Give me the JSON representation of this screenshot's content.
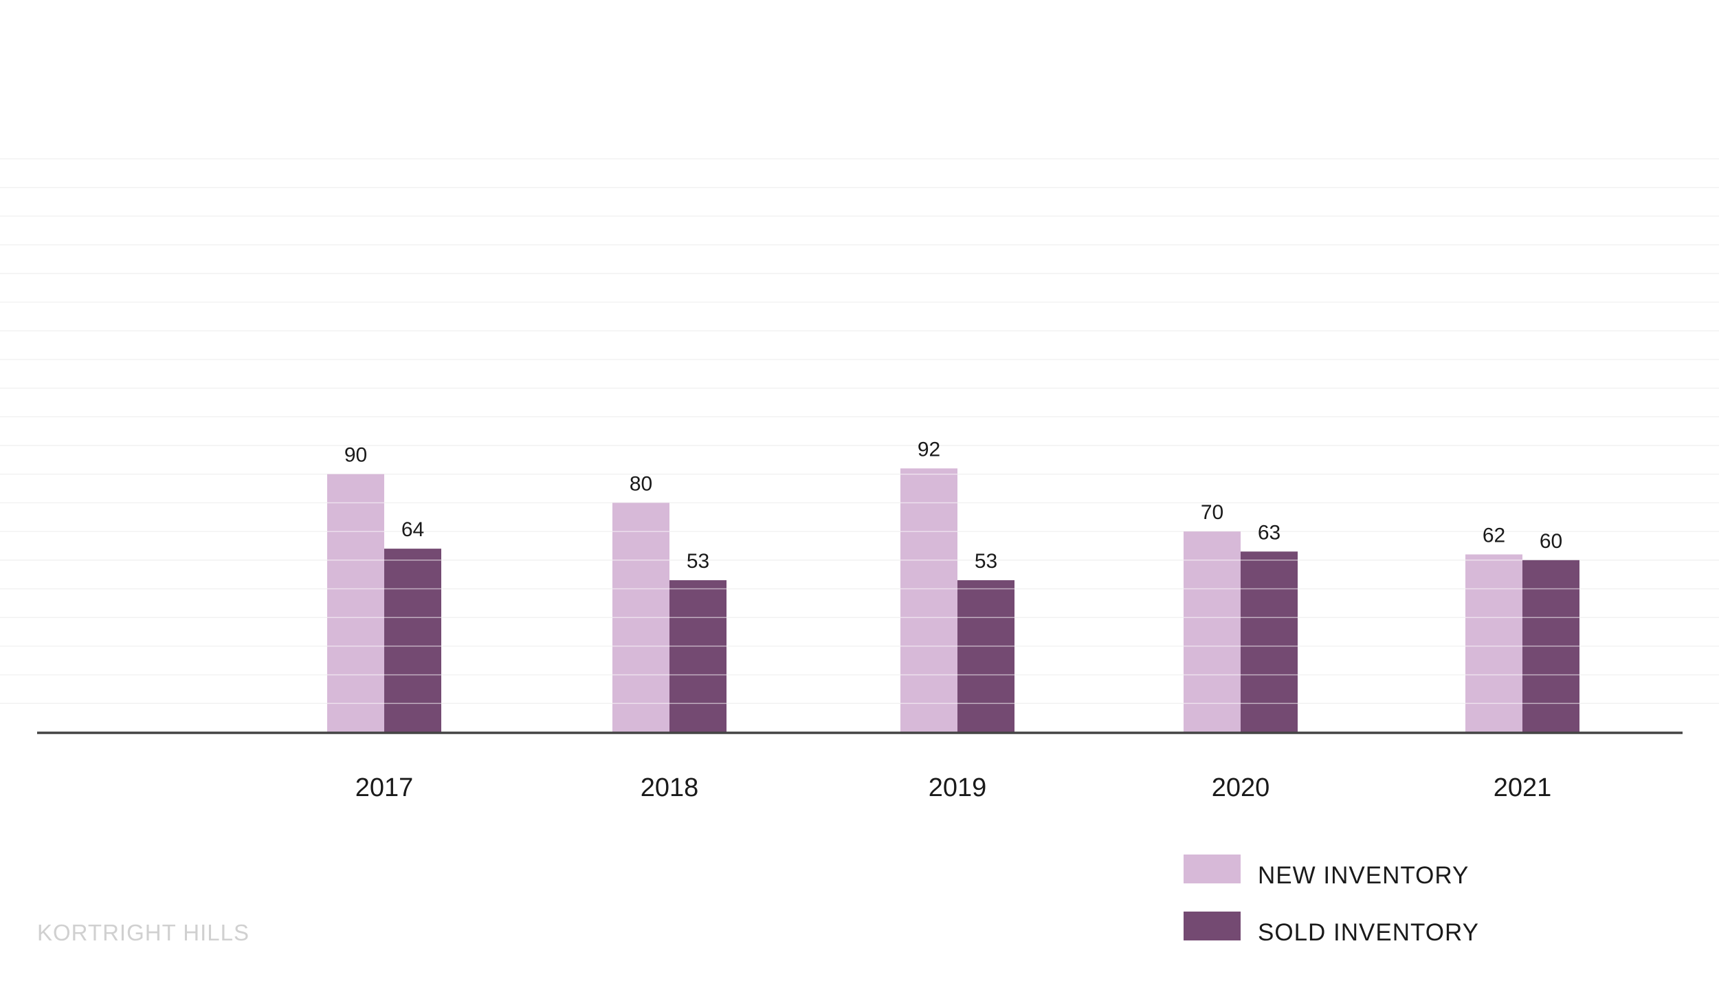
{
  "chart_data": {
    "type": "bar",
    "categories": [
      "2017",
      "2018",
      "2019",
      "2020",
      "2021"
    ],
    "series": [
      {
        "name": "NEW INVENTORY",
        "values": [
          90,
          80,
          92,
          70,
          62
        ],
        "color": "#d7b9d8"
      },
      {
        "name": "SOLD INVENTORY",
        "values": [
          64,
          53,
          53,
          63,
          60
        ],
        "color": "#744a72"
      }
    ],
    "ylim": [
      0,
      200
    ],
    "grid": true,
    "legend_position": "bottom-right"
  },
  "footer": {
    "watermark": "KORTRIGHT HILLS"
  },
  "colors": {
    "grid": "#f2f2f2",
    "axis": "#444444",
    "bar_grid": "#ffffff"
  }
}
